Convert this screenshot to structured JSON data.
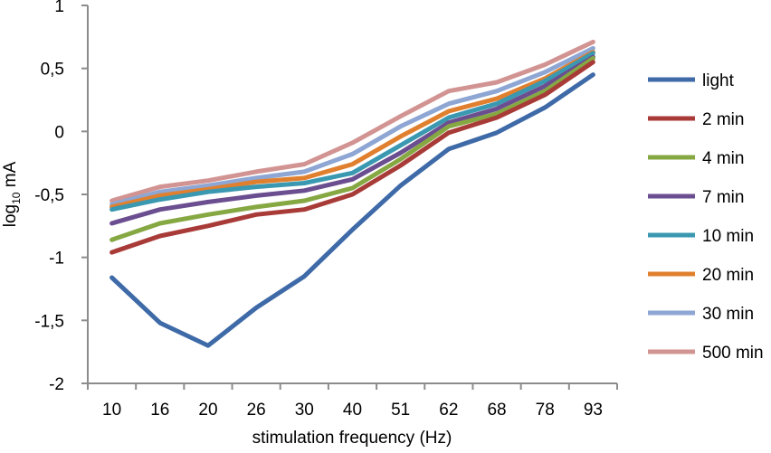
{
  "chart_data": {
    "type": "line",
    "title": "",
    "xlabel": "stimulation frequency (Hz)",
    "ylabel_main": "log",
    "ylabel_sub": "10",
    "ylabel_unit": " mA",
    "ylim": [
      -2,
      1
    ],
    "yticks": [
      1,
      0.5,
      0,
      -0.5,
      -1,
      -1.5,
      -2
    ],
    "ytick_labels": [
      "1",
      "0,5",
      "0",
      "-0,5",
      "-1",
      "-1,5",
      "-2"
    ],
    "categories": [
      "10",
      "16",
      "20",
      "26",
      "30",
      "40",
      "51",
      "62",
      "68",
      "78",
      "93"
    ],
    "legend_position": "right",
    "grid": false,
    "series": [
      {
        "name": "light",
        "color": "#3e6aa8",
        "values": [
          -1.16,
          -1.52,
          -1.7,
          -1.4,
          -1.15,
          -0.78,
          -0.43,
          -0.14,
          -0.01,
          0.19,
          0.45
        ]
      },
      {
        "name": "2 min",
        "color": "#a83b37",
        "values": [
          -0.96,
          -0.83,
          -0.75,
          -0.66,
          -0.62,
          -0.5,
          -0.27,
          -0.01,
          0.11,
          0.29,
          0.55
        ]
      },
      {
        "name": "4 min",
        "color": "#86a843",
        "values": [
          -0.86,
          -0.73,
          -0.66,
          -0.6,
          -0.55,
          -0.45,
          -0.22,
          0.04,
          0.14,
          0.32,
          0.58
        ]
      },
      {
        "name": "7 min",
        "color": "#6b4e90",
        "values": [
          -0.73,
          -0.62,
          -0.56,
          -0.51,
          -0.47,
          -0.38,
          -0.17,
          0.07,
          0.18,
          0.36,
          0.59
        ]
      },
      {
        "name": "10 min",
        "color": "#3a98b0",
        "values": [
          -0.62,
          -0.54,
          -0.48,
          -0.44,
          -0.41,
          -0.33,
          -0.11,
          0.11,
          0.22,
          0.4,
          0.62
        ]
      },
      {
        "name": "20 min",
        "color": "#e0802f",
        "values": [
          -0.6,
          -0.51,
          -0.46,
          -0.4,
          -0.37,
          -0.26,
          -0.04,
          0.16,
          0.26,
          0.42,
          0.63
        ]
      },
      {
        "name": "30 min",
        "color": "#8ea6d3",
        "values": [
          -0.58,
          -0.48,
          -0.43,
          -0.37,
          -0.32,
          -0.18,
          0.04,
          0.22,
          0.32,
          0.47,
          0.66
        ]
      },
      {
        "name": "500 min",
        "color": "#d29492",
        "values": [
          -0.55,
          -0.44,
          -0.39,
          -0.32,
          -0.26,
          -0.09,
          0.12,
          0.32,
          0.39,
          0.53,
          0.71
        ]
      }
    ]
  }
}
